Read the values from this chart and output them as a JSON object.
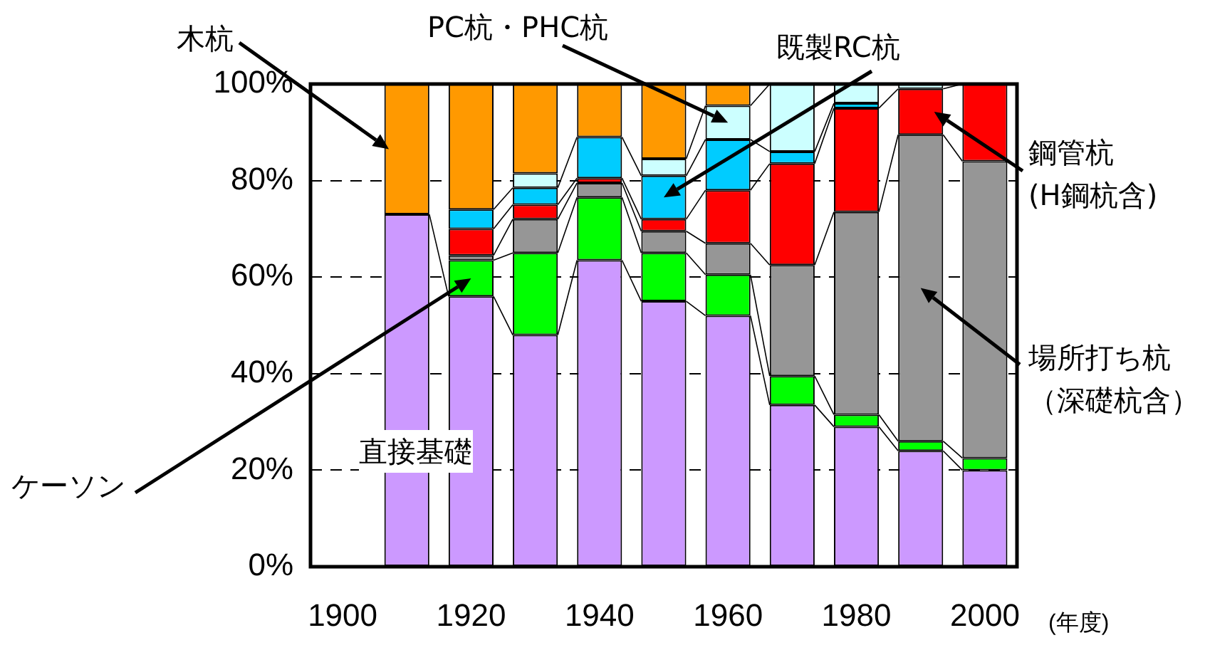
{
  "chart_data": {
    "type": "bar",
    "stacked": true,
    "xlabel": "(年度)",
    "categories": [
      "1900",
      null,
      "1920",
      null,
      "1940",
      null,
      "1960",
      null,
      "1980",
      null,
      "2000"
    ],
    "series": [
      {
        "name": "直接基礎",
        "color": "#cc99ff",
        "values": [
          null,
          73,
          56,
          48,
          63.5,
          55,
          52,
          33.5,
          29,
          24,
          20
        ]
      },
      {
        "name": "ケーソン",
        "color": "#00ff00",
        "values": [
          null,
          0,
          7.5,
          17,
          13,
          10,
          8.5,
          6,
          2.5,
          2,
          2.5
        ]
      },
      {
        "name": "場所打ち杭（深礎杭含）",
        "color": "#969696",
        "values": [
          null,
          0,
          1,
          7,
          3,
          4.5,
          6.5,
          23,
          42,
          63.5,
          61.5
        ]
      },
      {
        "name": "鋼管杭 (H鋼杭含)",
        "color": "#ff0000",
        "values": [
          null,
          0,
          5.5,
          3,
          1,
          2.5,
          11,
          21,
          21.5,
          9.5,
          16
        ]
      },
      {
        "name": "既製RC杭",
        "color": "#00ccff",
        "values": [
          null,
          0,
          4,
          3.5,
          8.5,
          9,
          10.5,
          2.5,
          1,
          0,
          0
        ]
      },
      {
        "name": "PC杭・PHC杭",
        "color": "#ccffff",
        "values": [
          null,
          0,
          0,
          3,
          0,
          3.5,
          7,
          14,
          4,
          1,
          0
        ]
      },
      {
        "name": "木杭",
        "color": "#ff9900",
        "values": [
          null,
          27,
          26,
          18.5,
          11,
          15.5,
          4.5,
          0,
          0,
          0,
          0
        ]
      }
    ],
    "ylim": [
      0,
      100
    ],
    "yticks": [
      {
        "value": 0,
        "label": "0%"
      },
      {
        "value": 20,
        "label": "20%"
      },
      {
        "value": 40,
        "label": "40%"
      },
      {
        "value": 60,
        "label": "60%"
      },
      {
        "value": 80,
        "label": "80%"
      },
      {
        "value": 100,
        "label": "100%"
      }
    ],
    "grid": "y",
    "legend": false
  }
}
